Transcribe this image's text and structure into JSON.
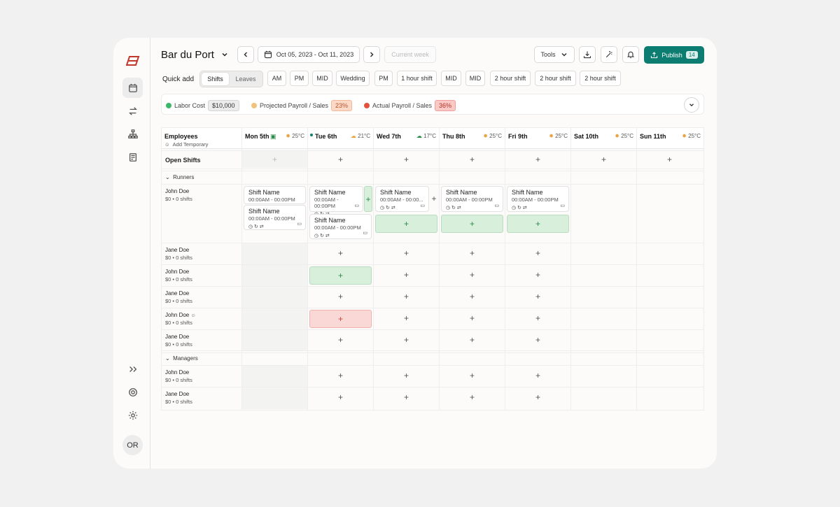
{
  "header": {
    "title": "Bar du Port",
    "date_range": "Oct 05, 2023 - Oct 11, 2023",
    "current_week": "Current week",
    "tools": "Tools",
    "publish": "Publish",
    "publish_count": "14"
  },
  "quick_add": {
    "label": "Quick add",
    "tabs": [
      "Shifts",
      "Leaves"
    ],
    "chips": [
      "AM",
      "PM",
      "MID",
      "Wedding",
      "PM",
      "1 hour shift",
      "MID",
      "MID",
      "2 hour shift",
      "2 hour shift",
      "2 hour shift"
    ]
  },
  "metrics": [
    {
      "label": "Labor Cost",
      "value": "$10,000",
      "dot": "#3db86b",
      "chip_bg": "#ececec",
      "chip_fg": "#333"
    },
    {
      "label": "Projected Payroll / Sales",
      "value": "23%",
      "dot": "#f3c27a",
      "chip_bg": "#fcd9c6",
      "chip_fg": "#b5552b"
    },
    {
      "label": "Actual Payroll / Sales",
      "value": "36%",
      "dot": "#e2533f",
      "chip_bg": "#fac9c5",
      "chip_fg": "#b3302a"
    }
  ],
  "grid": {
    "employees_header": "Employees",
    "add_temporary": "Add Temporary",
    "open_shifts": "Open Shifts",
    "days": [
      {
        "name": "Mon 5th",
        "temp": "25°C"
      },
      {
        "name": "Tue 6th",
        "temp": "21°C"
      },
      {
        "name": "Wed 7th",
        "temp": "17°C"
      },
      {
        "name": "Thu 8th",
        "temp": "25°C"
      },
      {
        "name": "Fri 9th",
        "temp": "25°C"
      },
      {
        "name": "Sat 10th",
        "temp": "25°C"
      },
      {
        "name": "Sun 11th",
        "temp": "25°C"
      }
    ],
    "groups": [
      "Runners",
      "Managers"
    ],
    "employees": [
      {
        "name": "John Doe",
        "sub": "$0 • 0 shifts"
      },
      {
        "name": "Jane Doe",
        "sub": "$0 • 0 shifts"
      },
      {
        "name": "John Doe",
        "sub": "$0 • 0 shifts"
      },
      {
        "name": "Jane Doe",
        "sub": "$0 • 0 shifts"
      },
      {
        "name": "John Doe",
        "sub": "$0 • 0 shifts"
      },
      {
        "name": "Jane Doe",
        "sub": "$0 • 0 shifts"
      },
      {
        "name": "John Doe",
        "sub": "$0 • 0 shifts"
      },
      {
        "name": "Jane Doe",
        "sub": "$0 • 0 shifts"
      }
    ],
    "shift": {
      "name": "Shift Name",
      "time": "00:00AM - 00:00PM",
      "time_truncated": "00:00AM - 00:00..."
    }
  },
  "user": {
    "initials": "OR"
  }
}
